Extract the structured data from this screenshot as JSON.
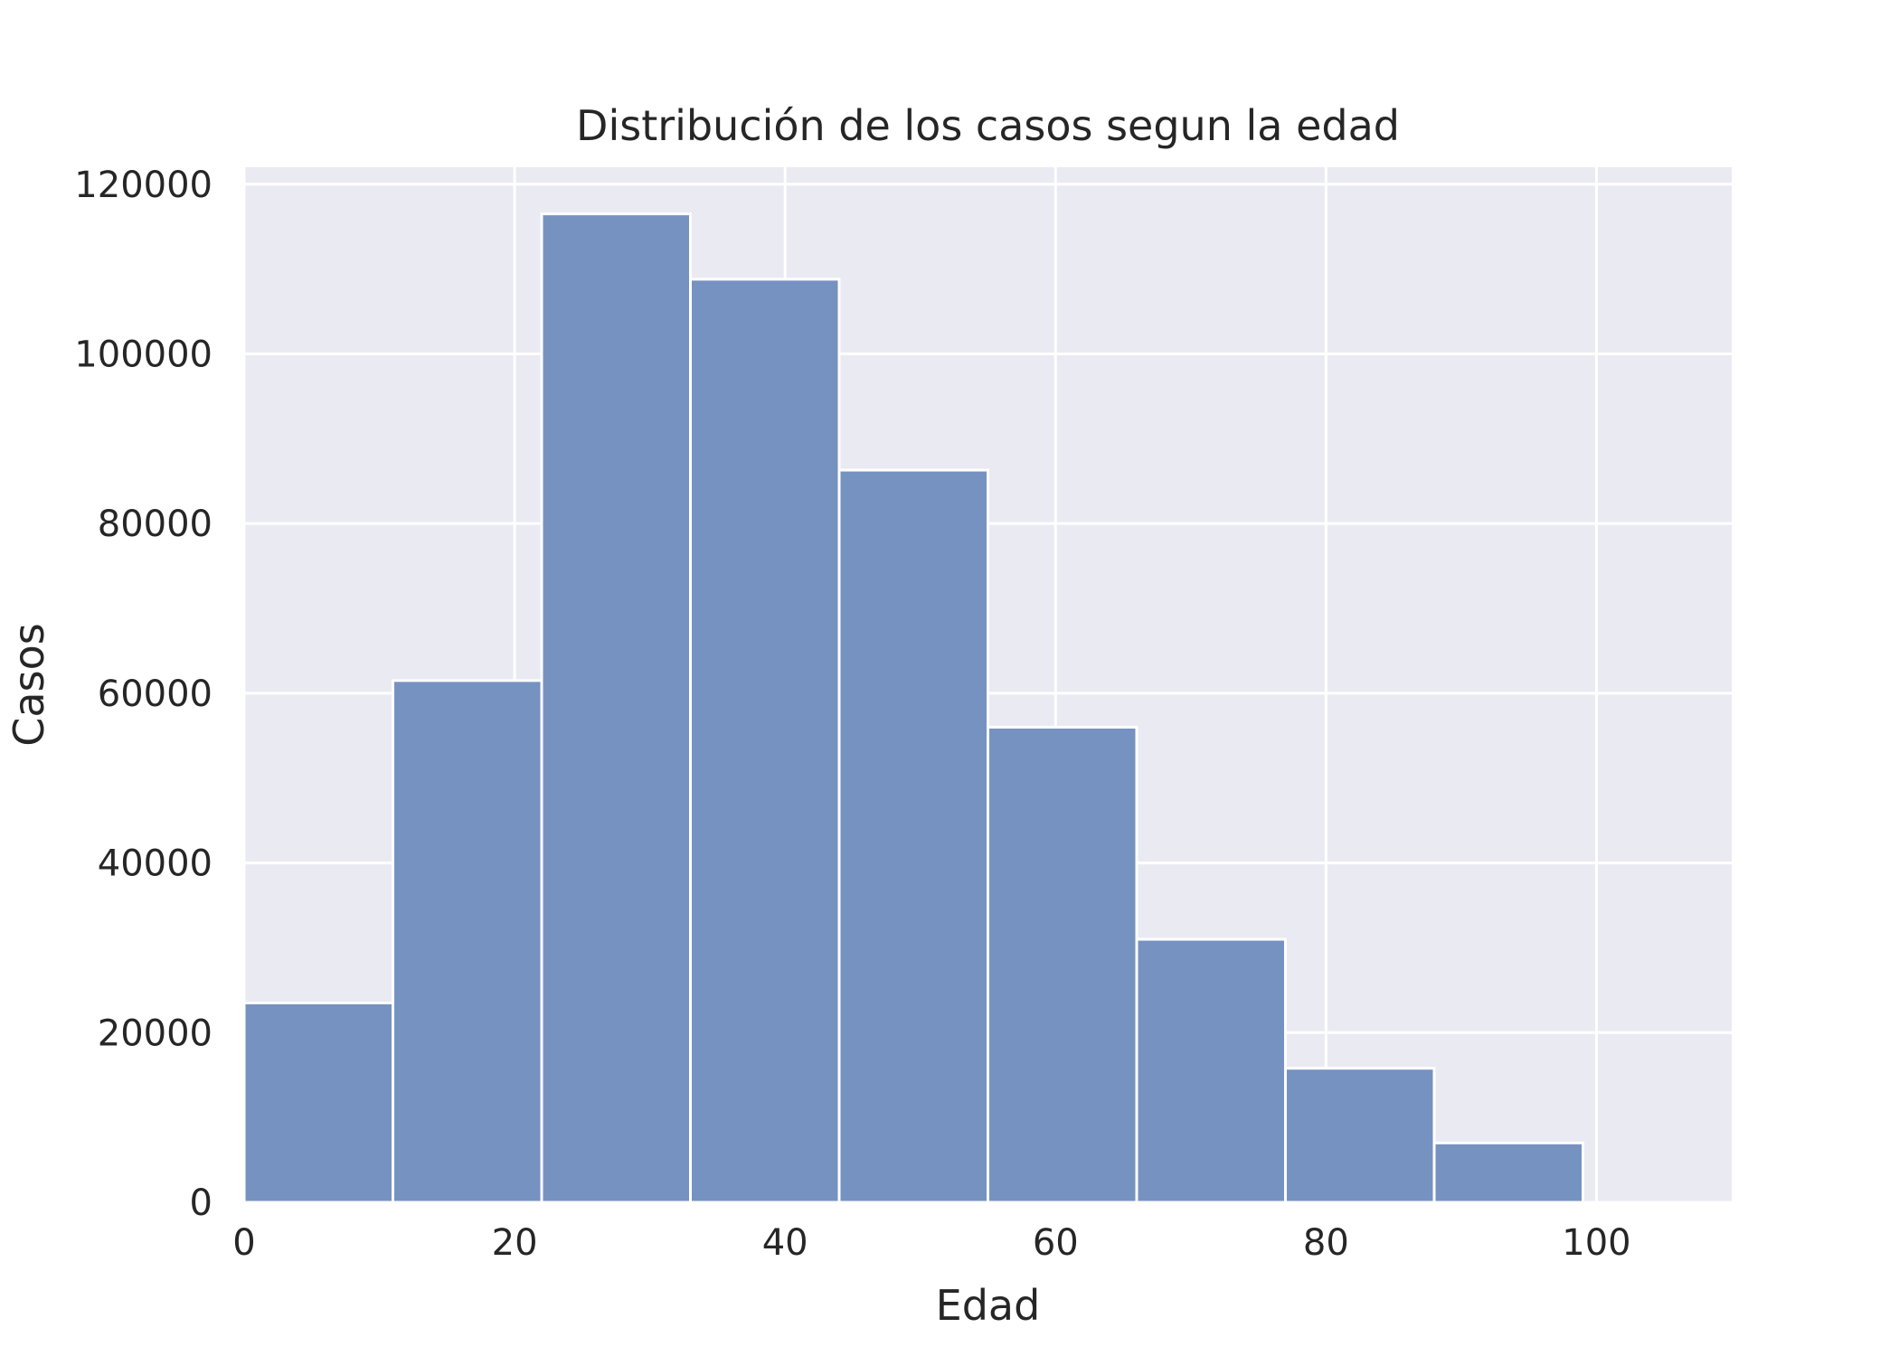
{
  "chart_data": {
    "type": "bar",
    "title": "Distribución de los casos segun la edad",
    "xlabel": "Edad",
    "ylabel": "Casos",
    "xlim": [
      0,
      110
    ],
    "ylim": [
      0,
      122000
    ],
    "x_ticks": [
      0,
      20,
      40,
      60,
      80,
      100
    ],
    "y_ticks": [
      0,
      20000,
      40000,
      60000,
      80000,
      100000,
      120000
    ],
    "bins": [
      {
        "x0": 0,
        "x1": 11,
        "value": 23500
      },
      {
        "x0": 11,
        "x1": 22,
        "value": 61500
      },
      {
        "x0": 22,
        "x1": 33,
        "value": 116500
      },
      {
        "x0": 33,
        "x1": 44,
        "value": 108800
      },
      {
        "x0": 44,
        "x1": 55,
        "value": 86300
      },
      {
        "x0": 55,
        "x1": 66,
        "value": 56000
      },
      {
        "x0": 66,
        "x1": 77,
        "value": 31000
      },
      {
        "x0": 77,
        "x1": 88,
        "value": 15800
      },
      {
        "x0": 88,
        "x1": 99,
        "value": 7000
      }
    ],
    "grid": true,
    "colors": {
      "bar": "#7692c1",
      "plot_background": "#eaeaf2",
      "grid": "#ffffff",
      "text": "#262626"
    }
  }
}
